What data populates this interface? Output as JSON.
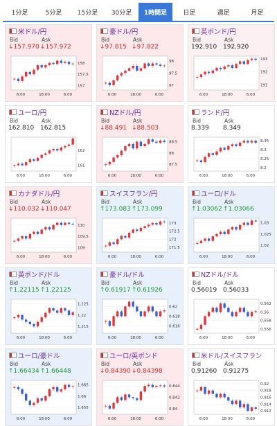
{
  "tabs": [
    "1分足",
    "5分足",
    "15分足",
    "30分足",
    "1時間足",
    "日足",
    "週足",
    "月足"
  ],
  "active_tab": 4,
  "bid_label": "Bid",
  "ask_label": "Ask",
  "x_labels": [
    "6:00",
    "18:00",
    "6:00"
  ],
  "up_color": "#e0353b",
  "down_color": "#3a5fd0",
  "tiles": [
    {
      "name": "米ドル/円",
      "bid": "↓157.970",
      "ask": "↓157.972",
      "background": "#fde8eb",
      "ylim": [
        156.8,
        158.3
      ],
      "yticks": [
        158,
        157.5,
        157
      ],
      "closes": [
        157.3,
        157.2,
        157.4,
        157.6,
        157.5,
        157.7,
        157.9,
        157.8,
        157.9,
        158.0,
        157.95,
        158.1,
        158.0,
        158.05,
        157.95,
        157.97
      ]
    },
    {
      "name": "豪ドル/円",
      "bid": "↓97.815",
      "ask": "↓97.822",
      "background": "#fde8eb",
      "ylim": [
        96.8,
        98.2
      ],
      "yticks": [
        98,
        97.5,
        97
      ],
      "closes": [
        97.1,
        97.0,
        97.2,
        97.4,
        97.5,
        97.6,
        97.7,
        97.8,
        97.6,
        97.7,
        97.9,
        97.8,
        97.9,
        97.85,
        97.8,
        97.815
      ]
    },
    {
      "name": "英ポンド/円",
      "bid": "192.910",
      "ask": "192.920",
      "background": "#fdf0f2",
      "ylim": [
        190.6,
        193.2
      ],
      "yticks": [
        193,
        192,
        191
      ],
      "closes": [
        191.6,
        191.8,
        192.0,
        191.9,
        192.1,
        192.3,
        192.2,
        192.4,
        192.5,
        192.3,
        192.6,
        192.8,
        192.6,
        192.9,
        193.0,
        192.91
      ]
    },
    {
      "name": "ユーロ/円",
      "bid": "162.810",
      "ask": "162.815",
      "background": "#ffffff",
      "ylim": [
        160.6,
        162.9
      ],
      "yticks": [
        162,
        161
      ],
      "closes": [
        161.0,
        161.1,
        161.0,
        161.2,
        161.4,
        161.3,
        161.5,
        161.7,
        161.8,
        162.0,
        162.1,
        162.0,
        162.2,
        162.3,
        162.4,
        162.81
      ]
    },
    {
      "name": "NZドル/円",
      "bid": "↓88.491",
      "ask": "↓88.503",
      "background": "#fde8eb",
      "ylim": [
        87.2,
        88.7
      ],
      "yticks": [
        88.5,
        88,
        87.5
      ],
      "closes": [
        87.5,
        87.6,
        87.8,
        87.9,
        88.1,
        88.3,
        88.4,
        88.2,
        88.5,
        88.3,
        88.4,
        88.6,
        88.5,
        88.45,
        88.55,
        88.49
      ]
    },
    {
      "name": "ランド/円",
      "bid": "8.339",
      "ask": "8.349",
      "background": "#ffffff",
      "ylim": [
        8.18,
        8.37
      ],
      "yticks": [
        8.35,
        8.3,
        8.25,
        8.2
      ],
      "closes": [
        8.24,
        8.23,
        8.26,
        8.28,
        8.27,
        8.29,
        8.31,
        8.3,
        8.32,
        8.33,
        8.32,
        8.34,
        8.35,
        8.34,
        8.35,
        8.339
      ]
    },
    {
      "name": "カナダドル/円",
      "bid": "↓110.032",
      "ask": "↓110.047",
      "background": "#fde8eb",
      "ylim": [
        108.8,
        110.3
      ],
      "yticks": [
        110,
        109.5,
        109
      ],
      "closes": [
        109.3,
        109.4,
        109.5,
        109.4,
        109.6,
        109.7,
        109.6,
        109.8,
        109.9,
        109.8,
        110.0,
        110.1,
        110.0,
        110.1,
        110.05,
        110.03
      ]
    },
    {
      "name": "スイスフラン/円",
      "bid": "↑173.083",
      "ask": "↑173.099",
      "background": "#e7f0fb",
      "ylim": [
        171.2,
        173.3
      ],
      "yticks": [
        173,
        172.5,
        172,
        171.5
      ],
      "closes": [
        171.6,
        171.8,
        171.7,
        172.0,
        172.2,
        172.1,
        172.4,
        172.6,
        172.5,
        172.7,
        172.8,
        172.9,
        173.0,
        172.9,
        173.1,
        173.08
      ]
    },
    {
      "name": "ユーロ/ドル",
      "bid": "↑1.03062",
      "ask": "↑1.03066",
      "background": "#e7f0fb",
      "ylim": [
        1.017,
        1.032
      ],
      "yticks": [
        1.03,
        1.025,
        1.02
      ],
      "closes": [
        1.021,
        1.022,
        1.023,
        1.022,
        1.024,
        1.025,
        1.026,
        1.025,
        1.027,
        1.028,
        1.027,
        1.029,
        1.03,
        1.029,
        1.031,
        1.0306
      ]
    },
    {
      "name": "英ポンド/ドル",
      "bid": "↑1.22115",
      "ask": "↑1.22125",
      "background": "#e7f0fb",
      "ylim": [
        1.212,
        1.227
      ],
      "yticks": [
        1.225,
        1.22,
        1.215
      ],
      "closes": [
        1.219,
        1.22,
        1.218,
        1.217,
        1.216,
        1.215,
        1.217,
        1.219,
        1.221,
        1.223,
        1.222,
        1.221,
        1.223,
        1.222,
        1.22,
        1.2212
      ]
    },
    {
      "name": "豪ドル/ドル",
      "bid": "↑0.61917",
      "ask": "↑0.61926",
      "background": "#e7f0fb",
      "ylim": [
        0.6145,
        0.6215
      ],
      "yticks": [
        0.62,
        0.618,
        0.616
      ],
      "closes": [
        0.617,
        0.616,
        0.618,
        0.619,
        0.618,
        0.62,
        0.621,
        0.62,
        0.619,
        0.618,
        0.619,
        0.62,
        0.619,
        0.618,
        0.619,
        0.6192
      ]
    },
    {
      "name": "NZドル/ドル",
      "bid": "0.56019",
      "ask": "0.56033",
      "background": "#ffffff",
      "ylim": [
        0.555,
        0.563
      ],
      "yticks": [
        0.562,
        0.56,
        0.558,
        0.556
      ],
      "closes": [
        0.556,
        0.557,
        0.559,
        0.56,
        0.561,
        0.56,
        0.562,
        0.561,
        0.56,
        0.559,
        0.56,
        0.561,
        0.56,
        0.559,
        0.56,
        0.5602
      ]
    },
    {
      "name": "ユーロ/豪ドル",
      "bid": "↑1.66434",
      "ask": "↑1.66448",
      "background": "#e7f0fb",
      "ylim": [
        1.652,
        1.667
      ],
      "yticks": [
        1.665,
        1.66,
        1.655
      ],
      "closes": [
        1.664,
        1.663,
        1.661,
        1.658,
        1.656,
        1.657,
        1.659,
        1.658,
        1.66,
        1.663,
        1.664,
        1.662,
        1.663,
        1.665,
        1.664,
        1.6643
      ]
    },
    {
      "name": "ユーロ/英ポンド",
      "bid": "↓0.84390",
      "ask": "↓0.84398",
      "background": "#fde8eb",
      "ylim": [
        0.839,
        0.845
      ],
      "yticks": [
        0.844,
        0.842,
        0.84
      ],
      "closes": [
        0.8405,
        0.84,
        0.841,
        0.842,
        0.8415,
        0.8425,
        0.842,
        0.8418,
        0.8415,
        0.843,
        0.844,
        0.8442,
        0.8438,
        0.844,
        0.8441,
        0.8439
      ]
    },
    {
      "name": "米ドル/スイスフラン",
      "bid": "0.91260",
      "ask": "0.91275",
      "background": "#ffffff",
      "ylim": [
        0.911,
        0.921
      ],
      "yticks": [
        0.92,
        0.918,
        0.916,
        0.914,
        0.912
      ],
      "closes": [
        0.918,
        0.919,
        0.917,
        0.918,
        0.917,
        0.916,
        0.917,
        0.916,
        0.915,
        0.914,
        0.915,
        0.913,
        0.914,
        0.912,
        0.913,
        0.9126
      ]
    }
  ]
}
